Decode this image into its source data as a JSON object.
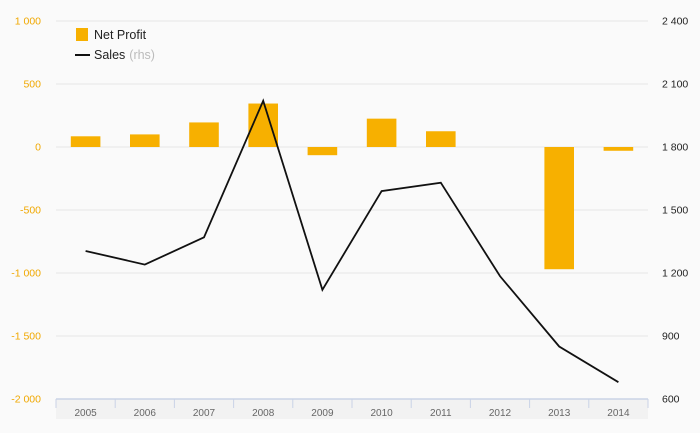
{
  "chart_data": {
    "type": "bar+line",
    "categories": [
      "2005",
      "2006",
      "2007",
      "2008",
      "2009",
      "2010",
      "2011",
      "2012",
      "2013",
      "2014"
    ],
    "series": [
      {
        "name": "Net Profit",
        "type": "bar",
        "axis": "left",
        "color": "#f7b000",
        "values": [
          85,
          100,
          195,
          345,
          -65,
          225,
          125,
          0,
          -970,
          -30
        ]
      },
      {
        "name": "Sales",
        "type": "line",
        "axis": "right",
        "color": "#111111",
        "values": [
          1305,
          1240,
          1370,
          2020,
          1120,
          1590,
          1630,
          1185,
          850,
          680
        ]
      }
    ],
    "y_left": {
      "lim": [
        -2000,
        1000
      ],
      "ticks": [
        1000,
        500,
        0,
        -500,
        -1000,
        -1500,
        -2000
      ],
      "tick_labels": [
        "1 000",
        "500",
        "0",
        "-500",
        "-1 000",
        "-1 500",
        "-2 000"
      ],
      "color": "#f0a800"
    },
    "y_right": {
      "lim": [
        600,
        2400
      ],
      "ticks": [
        2400,
        2100,
        1800,
        1500,
        1200,
        900,
        600
      ],
      "tick_labels": [
        "2 400",
        "2 100",
        "1 800",
        "1 500",
        "1 200",
        "900",
        "600"
      ],
      "color": "#222222"
    },
    "legend": {
      "placement": "top-left",
      "items": [
        {
          "label": "Net Profit",
          "note": "",
          "marker": "square"
        },
        {
          "label": "Sales",
          "note": "(rhs)",
          "marker": "line"
        }
      ]
    },
    "grid": true
  }
}
